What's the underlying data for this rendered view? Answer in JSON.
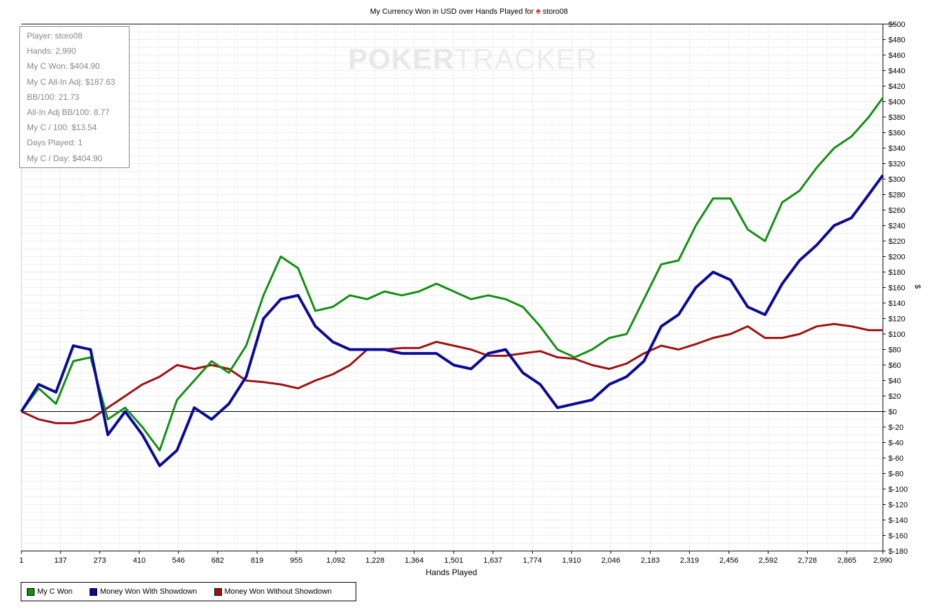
{
  "title": {
    "text": "My Currency Won in USD over Hands Played for",
    "icon": "spade-icon",
    "player": "storo08"
  },
  "watermark": {
    "part1": "POKER",
    "part2": "TRACKER"
  },
  "stats": [
    "Player: storo08",
    "Hands: 2,990",
    "My C Won: $404.90",
    "My C All-In Adj: $187.63",
    "BB/100: 21.73",
    "All-In Adj BB/100: 8.77",
    "My C / 100: $13.54",
    "Days Played: 1",
    "My C / Day: $404.90"
  ],
  "chart_data": {
    "type": "line",
    "title": "My Currency Won in USD over Hands Played for storo08",
    "xlabel": "Hands Played",
    "ylabel": "$",
    "xlim": [
      1,
      2990
    ],
    "ylim": [
      -180,
      500
    ],
    "xticks": [
      1,
      137,
      273,
      410,
      546,
      682,
      819,
      955,
      1092,
      1228,
      1364,
      1501,
      1637,
      1774,
      1910,
      2046,
      2183,
      2319,
      2456,
      2592,
      2728,
      2865,
      2990
    ],
    "xtick_labels": [
      "1",
      "137",
      "273",
      "410",
      "546",
      "682",
      "819",
      "955",
      "1,092",
      "1,228",
      "1,364",
      "1,501",
      "1,637",
      "1,774",
      "1,910",
      "2,046",
      "2,183",
      "2,319",
      "2,456",
      "2,592",
      "2,728",
      "2,865",
      "2,990"
    ],
    "ytick_step": 20,
    "grid": true,
    "legend_placement": "bottom-left",
    "x": [
      1,
      61,
      121,
      181,
      241,
      301,
      361,
      421,
      481,
      541,
      601,
      661,
      721,
      781,
      841,
      901,
      961,
      1021,
      1081,
      1141,
      1201,
      1261,
      1321,
      1381,
      1441,
      1501,
      1561,
      1621,
      1681,
      1741,
      1801,
      1861,
      1921,
      1981,
      2041,
      2101,
      2161,
      2221,
      2281,
      2341,
      2401,
      2461,
      2521,
      2581,
      2641,
      2701,
      2761,
      2821,
      2881,
      2941,
      2990
    ],
    "series": [
      {
        "name": "My C Won",
        "color": "#109010",
        "values": [
          0,
          30,
          10,
          65,
          70,
          -10,
          5,
          -20,
          -50,
          15,
          40,
          65,
          50,
          85,
          150,
          200,
          185,
          130,
          135,
          150,
          145,
          155,
          150,
          155,
          165,
          155,
          145,
          150,
          145,
          135,
          110,
          80,
          70,
          80,
          95,
          100,
          145,
          190,
          195,
          240,
          275,
          275,
          235,
          220,
          270,
          285,
          315,
          340,
          355,
          380,
          405
        ]
      },
      {
        "name": "Money Won With Showdown",
        "color": "#0a0a9a",
        "values": [
          0,
          35,
          25,
          85,
          80,
          -30,
          0,
          -30,
          -70,
          -50,
          5,
          -10,
          10,
          45,
          120,
          145,
          150,
          110,
          90,
          80,
          80,
          80,
          75,
          75,
          75,
          60,
          55,
          75,
          80,
          50,
          35,
          5,
          10,
          15,
          35,
          45,
          65,
          110,
          125,
          160,
          180,
          170,
          135,
          125,
          165,
          195,
          215,
          240,
          250,
          280,
          305
        ]
      },
      {
        "name": "Money Won Without Showdown",
        "color": "#a01010",
        "values": [
          0,
          -10,
          -15,
          -15,
          -10,
          5,
          20,
          35,
          45,
          60,
          55,
          60,
          55,
          40,
          38,
          35,
          30,
          40,
          48,
          60,
          80,
          80,
          82,
          82,
          90,
          85,
          80,
          72,
          72,
          75,
          78,
          70,
          68,
          60,
          55,
          62,
          75,
          85,
          80,
          87,
          95,
          100,
          110,
          95,
          95,
          100,
          110,
          113,
          110,
          105,
          105
        ]
      }
    ]
  }
}
